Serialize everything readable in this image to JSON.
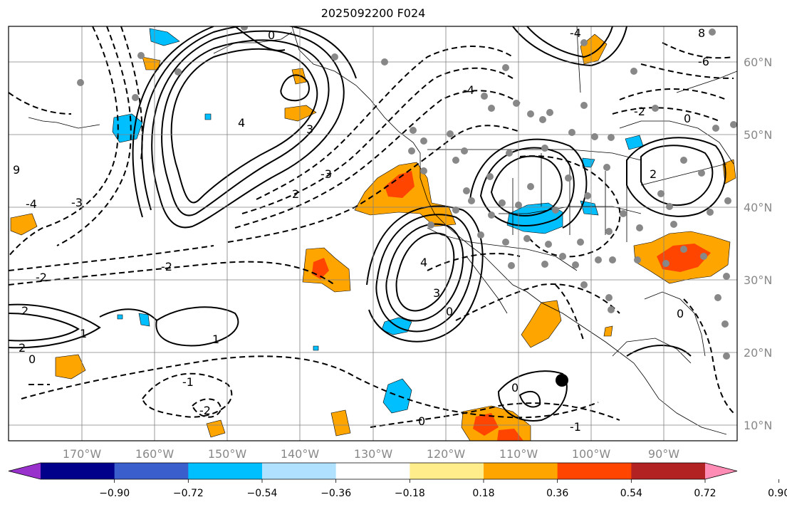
{
  "title": "2025092200 F024",
  "map": {
    "projection": "cylindrical",
    "lon_range": [
      -180,
      -80
    ],
    "lat_range": [
      8,
      65
    ],
    "grid": true,
    "lon_ticks": [
      {
        "lon": -170,
        "label": "170°W"
      },
      {
        "lon": -160,
        "label": "160°W"
      },
      {
        "lon": -150,
        "label": "150°W"
      },
      {
        "lon": -140,
        "label": "140°W"
      },
      {
        "lon": -130,
        "label": "130°W"
      },
      {
        "lon": -120,
        "label": "120°W"
      },
      {
        "lon": -110,
        "label": "110°W"
      },
      {
        "lon": -100,
        "label": "100°W"
      },
      {
        "lon": -90,
        "label": "90°W"
      }
    ],
    "lat_ticks": [
      {
        "lat": 60,
        "label": "60°N"
      },
      {
        "lat": 50,
        "label": "50°N"
      },
      {
        "lat": 40,
        "label": "40°N"
      },
      {
        "lat": 30,
        "label": "30°N"
      },
      {
        "lat": 20,
        "label": "20°N"
      },
      {
        "lat": 10,
        "label": "10°N"
      }
    ],
    "contour_labels": [
      "4",
      "3",
      "2",
      "1",
      "0",
      "-1",
      "-2",
      "-3",
      "-4",
      "-6",
      "8",
      "9"
    ],
    "marker": {
      "lon": -103.5,
      "lat": 16.3
    }
  },
  "colorbar": {
    "colors": [
      "#9932cc",
      "#00008b",
      "#3a5fcd",
      "#00bfff",
      "#b0e2ff",
      "#ffffff",
      "#ffec8b",
      "#ffa500",
      "#ff4500",
      "#b22222",
      "#ff8cb4"
    ],
    "ticks": [
      "−0.90",
      "−0.72",
      "−0.54",
      "−0.36",
      "−0.18",
      "0.18",
      "0.36",
      "0.54",
      "0.72",
      "0.90"
    ],
    "extend": "both"
  }
}
